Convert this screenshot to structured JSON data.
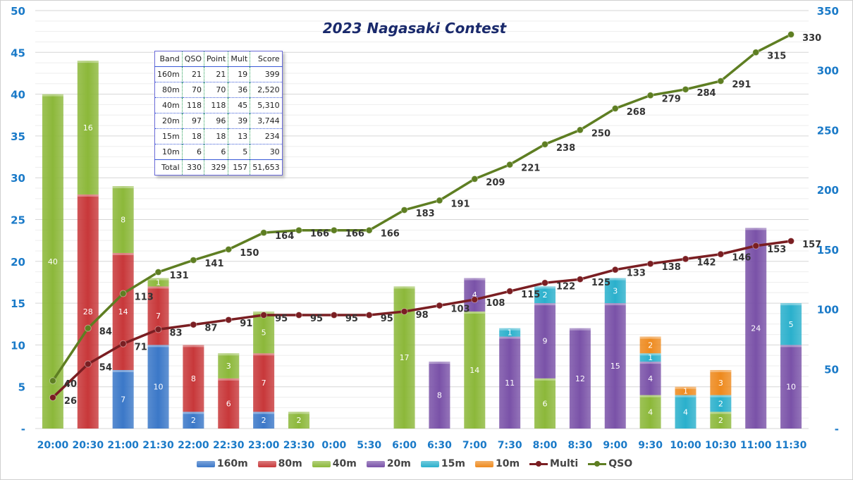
{
  "chart_data": {
    "type": "bar",
    "stacked": true,
    "title": "2023 Nagasaki Contest",
    "categories": [
      "20:00",
      "20:30",
      "21:00",
      "21:30",
      "22:00",
      "22:30",
      "23:00",
      "23:30",
      "0:00",
      "5:30",
      "6:00",
      "6:30",
      "7:00",
      "7:30",
      "8:00",
      "8:30",
      "9:00",
      "9:30",
      "10:00",
      "10:30",
      "11:00",
      "11:30"
    ],
    "y_left": {
      "range": [
        0,
        50
      ],
      "ticks": [
        "-",
        "5",
        "10",
        "15",
        "20",
        "25",
        "30",
        "35",
        "40",
        "45",
        "50"
      ]
    },
    "y_right": {
      "range": [
        0,
        350
      ],
      "ticks": [
        "-",
        "50",
        "100",
        "150",
        "200",
        "250",
        "300",
        "350"
      ]
    },
    "series": [
      {
        "name": "160m",
        "kind": "bar",
        "color": "#3b78c8",
        "values": [
          0,
          0,
          7,
          10,
          2,
          0,
          2,
          0,
          0,
          0,
          0,
          0,
          0,
          0,
          0,
          0,
          0,
          0,
          0,
          0,
          0,
          0
        ]
      },
      {
        "name": "80m",
        "kind": "bar",
        "color": "#c8383a",
        "values": [
          0,
          28,
          14,
          7,
          8,
          6,
          7,
          0,
          0,
          0,
          0,
          0,
          0,
          0,
          0,
          0,
          0,
          0,
          0,
          0,
          0,
          0
        ]
      },
      {
        "name": "40m",
        "kind": "bar",
        "color": "#8cb83a",
        "values": [
          40,
          16,
          8,
          1,
          0,
          3,
          5,
          2,
          0,
          0,
          17,
          0,
          14,
          0,
          6,
          0,
          0,
          4,
          0,
          2,
          0,
          0
        ]
      },
      {
        "name": "20m",
        "kind": "bar",
        "color": "#7a52a8",
        "values": [
          0,
          0,
          0,
          0,
          0,
          0,
          0,
          0,
          0,
          0,
          0,
          8,
          4,
          11,
          9,
          12,
          15,
          4,
          0,
          0,
          24,
          10
        ]
      },
      {
        "name": "15m",
        "kind": "bar",
        "color": "#2ab0cc",
        "values": [
          0,
          0,
          0,
          0,
          0,
          0,
          0,
          0,
          0,
          0,
          0,
          0,
          0,
          1,
          2,
          0,
          3,
          1,
          4,
          2,
          0,
          5
        ]
      },
      {
        "name": "10m",
        "kind": "bar",
        "color": "#ee8a1e",
        "values": [
          0,
          0,
          0,
          0,
          0,
          0,
          0,
          0,
          0,
          0,
          0,
          0,
          0,
          0,
          0,
          0,
          0,
          2,
          1,
          3,
          0,
          0
        ]
      },
      {
        "name": "Multi",
        "kind": "line",
        "axis": "right",
        "color": "#7a1e22",
        "values": [
          26,
          54,
          71,
          83,
          87,
          91,
          95,
          95,
          95,
          95,
          98,
          103,
          108,
          115,
          122,
          125,
          133,
          138,
          142,
          146,
          153,
          157
        ]
      },
      {
        "name": "QSO",
        "kind": "line",
        "axis": "right",
        "color": "#5e7e22",
        "values": [
          40,
          84,
          113,
          131,
          141,
          150,
          164,
          166,
          166,
          166,
          183,
          191,
          209,
          221,
          238,
          250,
          268,
          279,
          284,
          291,
          315,
          330
        ]
      }
    ],
    "legend": "bottom",
    "grid": true
  },
  "table": {
    "headers": [
      "Band",
      "QSO",
      "Point",
      "Mult",
      "Score"
    ],
    "rows": [
      [
        "160m",
        "21",
        "21",
        "19",
        "399"
      ],
      [
        "80m",
        "70",
        "70",
        "36",
        "2,520"
      ],
      [
        "40m",
        "118",
        "118",
        "45",
        "5,310"
      ],
      [
        "20m",
        "97",
        "96",
        "39",
        "3,744"
      ],
      [
        "15m",
        "18",
        "18",
        "13",
        "234"
      ],
      [
        "10m",
        "6",
        "6",
        "5",
        "30"
      ]
    ],
    "total": [
      "Total",
      "330",
      "329",
      "157",
      "51,653"
    ]
  }
}
